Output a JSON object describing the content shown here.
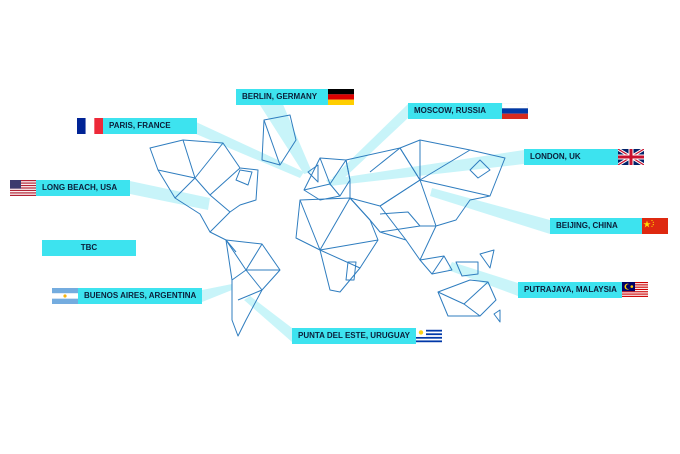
{
  "locations": [
    {
      "label": "BERLIN, GERMANY",
      "flag": "germany-flag"
    },
    {
      "label": "PARIS, FRANCE",
      "flag": "france-flag"
    },
    {
      "label": "MOSCOW, RUSSIA",
      "flag": "russia-flag"
    },
    {
      "label": "LONDON, UK",
      "flag": "uk-flag"
    },
    {
      "label": "LONG BEACH, USA",
      "flag": "usa-flag"
    },
    {
      "label": "BEIJING, CHINA",
      "flag": "china-flag"
    },
    {
      "label": "TBC",
      "flag": ""
    },
    {
      "label": "PUTRAJAYA, MALAYSIA",
      "flag": "malaysia-flag"
    },
    {
      "label": "BUENOS AIRES, ARGENTINA",
      "flag": "argentina-flag"
    },
    {
      "label": "PUNTA DEL ESTE, URUGUAY",
      "flag": "uruguay-flag"
    }
  ],
  "colors": {
    "label_background": "#3de3ef",
    "map_line": "#2f7dbf",
    "connector": "#b7f1f7"
  }
}
